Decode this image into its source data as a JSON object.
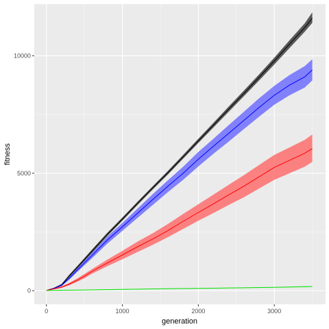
{
  "chart_data": {
    "type": "line",
    "title": "",
    "xlabel": "generation",
    "ylabel": "fitness",
    "xlim": [
      -160,
      3675
    ],
    "ylim": [
      -580,
      12200
    ],
    "x_ticks": [
      0,
      1000,
      2000,
      3000
    ],
    "x_tick_labels": [
      "0",
      "1000",
      "2000",
      "3000"
    ],
    "y_ticks": [
      0,
      5000,
      10000
    ],
    "y_tick_labels": [
      "0",
      "5000",
      "10000"
    ],
    "grid": true,
    "legend": "none",
    "series": [
      {
        "color": "#000000",
        "band_color": "#333333",
        "x": [
          0,
          100,
          200,
          300,
          400,
          500,
          600,
          800,
          1000,
          1200,
          1400,
          1600,
          1800,
          2000,
          2200,
          2400,
          2600,
          2800,
          3000,
          3200,
          3400,
          3500
        ],
        "y": [
          10,
          100,
          250,
          620,
          970,
          1320,
          1680,
          2390,
          3050,
          3720,
          4380,
          5020,
          5700,
          6380,
          7050,
          7730,
          8400,
          9080,
          9780,
          10500,
          11200,
          11600
        ],
        "lower": [
          0,
          80,
          220,
          570,
          910,
          1250,
          1610,
          2320,
          2980,
          3650,
          4310,
          4950,
          5620,
          6290,
          6950,
          7620,
          8280,
          8950,
          9630,
          10330,
          11020,
          11400
        ],
        "upper": [
          25,
          130,
          290,
          680,
          1030,
          1390,
          1750,
          2460,
          3120,
          3790,
          4450,
          5100,
          5780,
          6470,
          7150,
          7840,
          8520,
          9210,
          9920,
          10660,
          11380,
          11850
        ]
      },
      {
        "color": "#0000ff",
        "band_color": "#6666ff",
        "x": [
          0,
          100,
          200,
          300,
          400,
          500,
          600,
          800,
          1000,
          1200,
          1400,
          1600,
          1800,
          2000,
          2200,
          2400,
          2600,
          2800,
          3000,
          3200,
          3400,
          3500
        ],
        "y": [
          10,
          95,
          230,
          530,
          860,
          1180,
          1500,
          2150,
          2720,
          3300,
          3880,
          4450,
          5000,
          5600,
          6150,
          6700,
          7250,
          7800,
          8320,
          8750,
          9100,
          9400
        ],
        "lower": [
          0,
          70,
          190,
          470,
          780,
          1080,
          1380,
          2000,
          2550,
          3100,
          3650,
          4200,
          4720,
          5290,
          5830,
          6350,
          6880,
          7410,
          7920,
          8320,
          8650,
          8950
        ],
        "upper": [
          25,
          125,
          270,
          590,
          940,
          1280,
          1620,
          2300,
          2890,
          3500,
          4110,
          4700,
          5280,
          5910,
          6470,
          7050,
          7620,
          8190,
          8720,
          9180,
          9560,
          9850
        ]
      },
      {
        "color": "#ff0000",
        "band_color": "#ff6666",
        "x": [
          0,
          100,
          200,
          300,
          400,
          500,
          600,
          800,
          1000,
          1200,
          1400,
          1600,
          1800,
          2000,
          2200,
          2400,
          2600,
          2800,
          3000,
          3200,
          3400,
          3500
        ],
        "y": [
          10,
          80,
          150,
          280,
          440,
          620,
          820,
          1180,
          1520,
          1870,
          2200,
          2560,
          2950,
          3330,
          3700,
          4080,
          4450,
          4850,
          5250,
          5550,
          5850,
          6050
        ],
        "lower": [
          0,
          60,
          120,
          230,
          370,
          530,
          720,
          1040,
          1340,
          1650,
          1950,
          2280,
          2630,
          2980,
          3310,
          3650,
          3980,
          4350,
          4720,
          5000,
          5280,
          5480
        ],
        "upper": [
          25,
          110,
          185,
          330,
          510,
          710,
          920,
          1320,
          1700,
          2090,
          2450,
          2840,
          3270,
          3680,
          4090,
          4510,
          4920,
          5350,
          5780,
          6100,
          6420,
          6650
        ]
      },
      {
        "color": "#00e000",
        "band_color": "#66ff66",
        "x": [
          0,
          500,
          1000,
          1500,
          2000,
          2500,
          3000,
          3500
        ],
        "y": [
          10,
          30,
          55,
          80,
          100,
          120,
          145,
          180
        ],
        "lower": [
          0,
          20,
          45,
          70,
          90,
          110,
          135,
          165
        ],
        "upper": [
          20,
          40,
          65,
          90,
          110,
          130,
          155,
          195
        ]
      }
    ]
  }
}
